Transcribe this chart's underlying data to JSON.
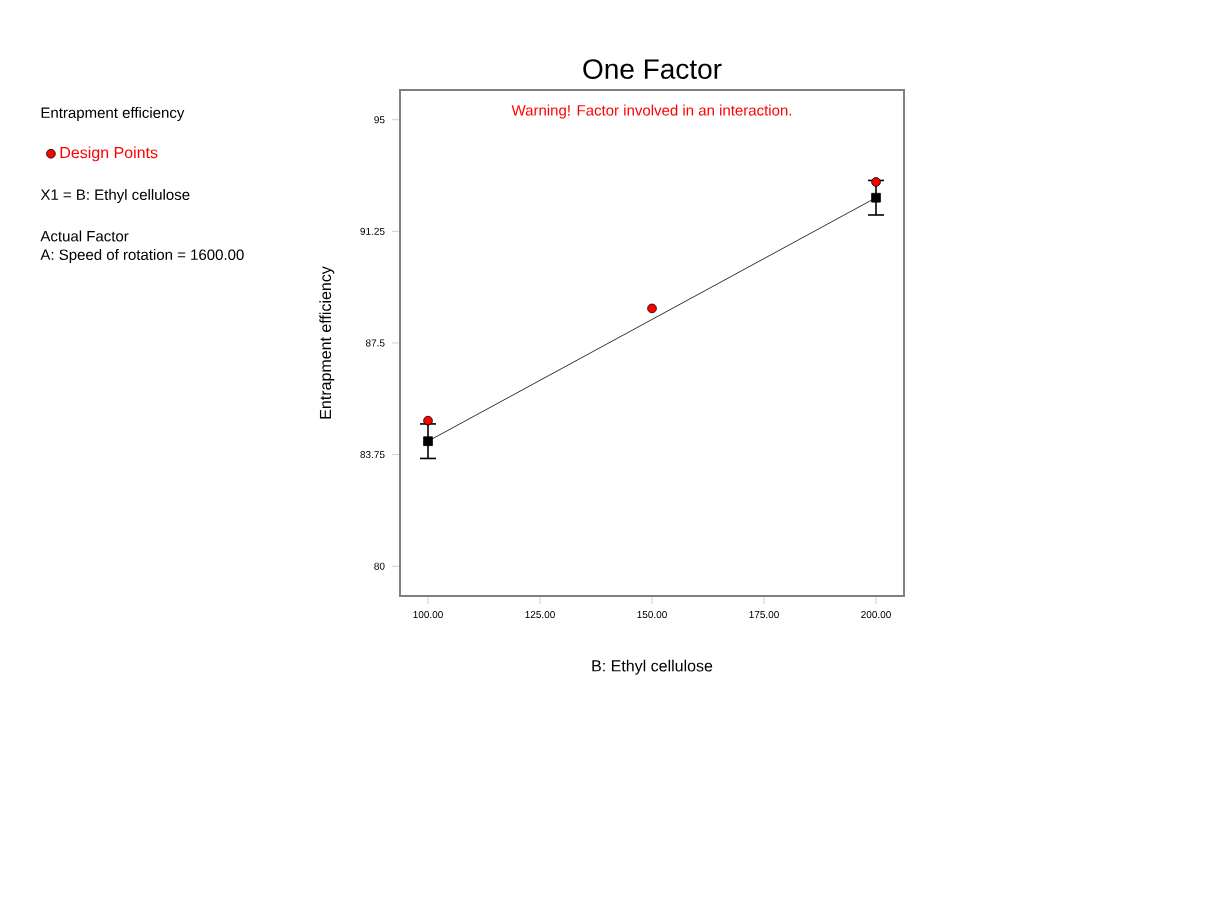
{
  "chart_data": {
    "type": "scatter",
    "title": "One Factor",
    "xlabel": "B: Ethyl cellulose",
    "ylabel": "Entrapment efficiency",
    "annotations": [
      "Warning! Factor involved in an interaction.",
      "Entrapment efficiency",
      "X1 = B: Ethyl cellulose",
      "Actual Factor",
      "A: Speed of rotation = 1600.00"
    ],
    "series": [
      {
        "name": "Design Points",
        "marker": "circle",
        "color": "#ff0000",
        "x": [
          100,
          150,
          200
        ],
        "values": [
          84.89,
          88.66,
          92.91
        ]
      },
      {
        "type": "line",
        "marker": "square",
        "line_style": "solid",
        "color": "#000000",
        "x": [
          100,
          200
        ],
        "values": [
          84.2,
          92.38
        ],
        "errors": [
          0.58,
          0.58
        ]
      }
    ],
    "xlim": [
      93.75,
      206.25
    ],
    "ylim": [
      79,
      96
    ],
    "xticks": [
      {
        "value": 100,
        "label": "100.00"
      },
      {
        "value": 125,
        "label": "125.00"
      },
      {
        "value": 150,
        "label": "150.00"
      },
      {
        "value": 175,
        "label": "175.00"
      },
      {
        "value": 200,
        "label": "200.00"
      }
    ],
    "yticks": [
      80,
      83.75,
      87.5,
      91.25,
      95
    ],
    "grid": false,
    "legend": "left"
  }
}
